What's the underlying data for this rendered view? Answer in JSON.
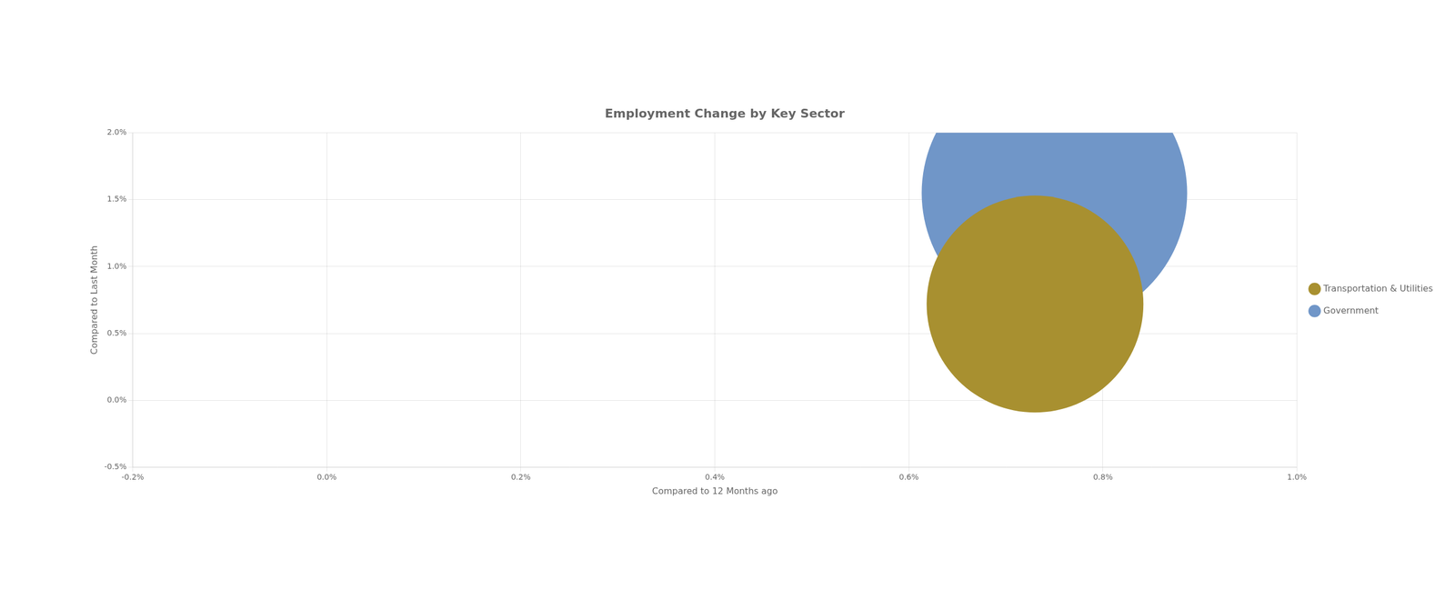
{
  "chart_data": {
    "type": "bubble",
    "title": "Employment Change by Key Sector",
    "xlabel": "Compared to 12 Months ago",
    "ylabel": "Compared to Last Month",
    "series": [
      {
        "name": "Government",
        "color": "#7096c8",
        "x": [
          0.0075
        ],
        "values": [
          0.0155
        ],
        "size": [
          120000
        ]
      },
      {
        "name": "Transportation & Utilities",
        "color": "#a89030",
        "x": [
          0.0073
        ],
        "values": [
          0.0072
        ],
        "size": [
          80000
        ]
      }
    ],
    "xlim": [
      -0.002,
      0.01
    ],
    "ylim": [
      -0.005,
      0.02
    ],
    "xticks": [
      {
        "value": -0.002,
        "label": "-0.2%"
      },
      {
        "value": 0.0,
        "label": "0.0%"
      },
      {
        "value": 0.002,
        "label": "0.2%"
      },
      {
        "value": 0.004,
        "label": "0.4%"
      },
      {
        "value": 0.006,
        "label": "0.6%"
      },
      {
        "value": 0.008,
        "label": "0.8%"
      },
      {
        "value": 0.01,
        "label": "1.0%"
      }
    ],
    "yticks": [
      {
        "value": -0.005,
        "label": "-0.5%"
      },
      {
        "value": 0.0,
        "label": "0.0%"
      },
      {
        "value": 0.005,
        "label": "0.5%"
      },
      {
        "value": 0.01,
        "label": "1.0%"
      },
      {
        "value": 0.015,
        "label": "1.5%"
      },
      {
        "value": 0.02,
        "label": "2.0%"
      }
    ],
    "grid": true,
    "legend": "right"
  }
}
